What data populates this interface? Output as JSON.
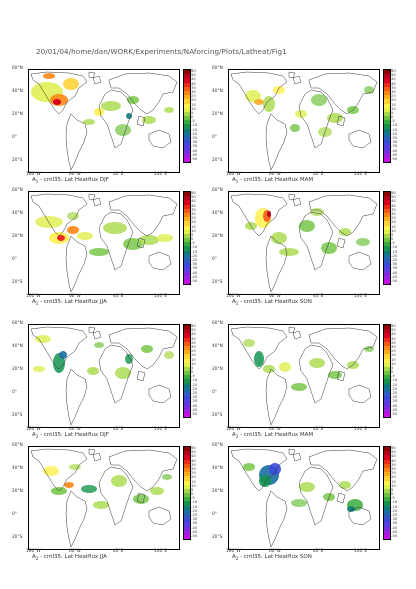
{
  "header": {
    "path": "20/01/04/home/dan/WORK/Experiments/NAforcing/Plots/Latheat/Fig1"
  },
  "axes": {
    "lat_ticks": [
      "60°N",
      "40°N",
      "20°N",
      "0°",
      "20°S"
    ],
    "lon_ticks": [
      "160°W",
      "60°W",
      "40°E",
      "140°E"
    ]
  },
  "colorbar": {
    "labels": [
      "60",
      "50",
      "45",
      "40",
      "35",
      "30",
      "25",
      "20",
      "15",
      "10",
      "5",
      "0",
      "-5",
      "-10",
      "-15",
      "-20",
      "-25",
      "-30",
      "-35",
      "-40",
      "-45",
      "-50"
    ],
    "colors": [
      "#8b0000",
      "#b4001b",
      "#d7001f",
      "#ee2a1b",
      "#f85a16",
      "#fc8715",
      "#fdac1f",
      "#fed33a",
      "#fff04e",
      "#dfef4b",
      "#a8d949",
      "#6fc43f",
      "#39ac3d",
      "#16944f",
      "#0c7e77",
      "#1a6fa0",
      "#2c5cc4",
      "#3b4bd9",
      "#5a3fe0",
      "#7a2ee0",
      "#a120e0",
      "#c80ee8"
    ]
  },
  "panels": [
    {
      "title": "A    -  cntl35: Lat Heatflux  DJF",
      "subscript": "1",
      "season": "DJF"
    },
    {
      "title": "A    -  cntl35: Lat Heatflux  MAM",
      "subscript": "1",
      "season": "MAM"
    },
    {
      "title": "A    -  cntl35: Lat Heatflux  JJA",
      "subscript": "1",
      "season": "JJA"
    },
    {
      "title": "A    -  cntl35: Lat Heatflux  SON",
      "subscript": "1",
      "season": "SON"
    },
    {
      "title": "A    -  cntl35: Lat Heatflux  DJF",
      "subscript": "2",
      "season": "DJF"
    },
    {
      "title": "A    -  cntl35: Lat Heatflux  MAM",
      "subscript": "2",
      "season": "MAM"
    },
    {
      "title": "A    -  cntl35: Lat Heatflux  JJA",
      "subscript": "2",
      "season": "JJA"
    },
    {
      "title": "A    -  cntl35: Lat Heatflux  SON",
      "subscript": "2",
      "season": "SON"
    }
  ]
}
